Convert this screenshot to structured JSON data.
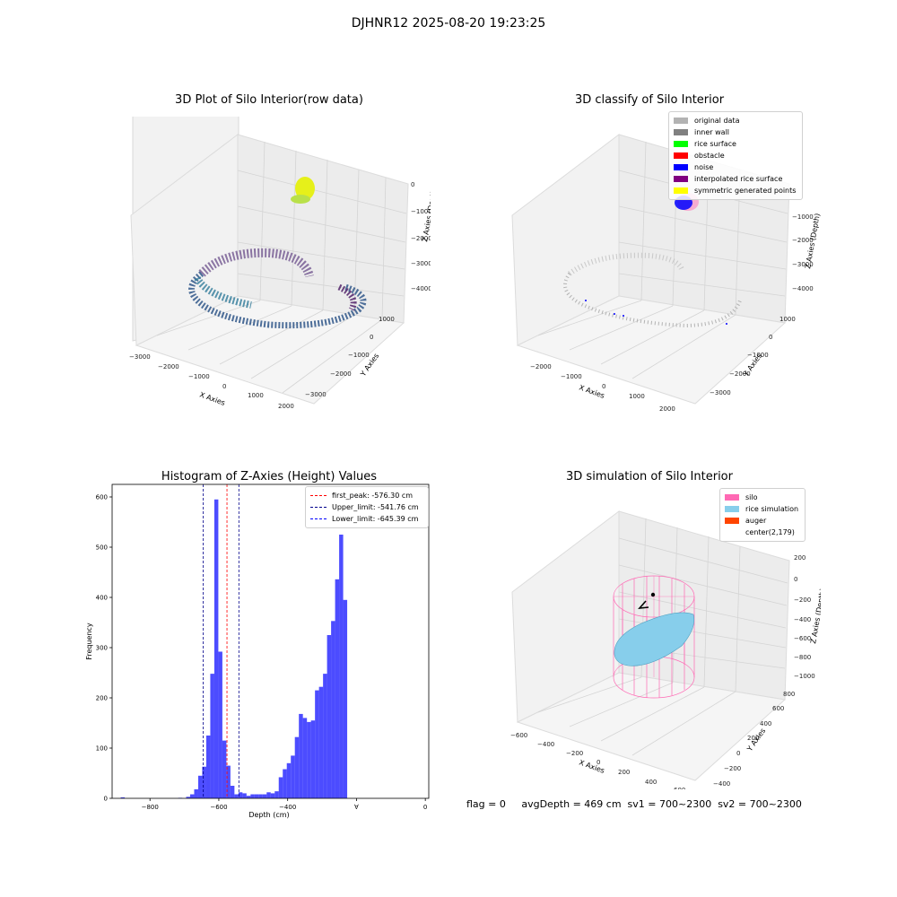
{
  "suptitle": "DJHNR12 2025-08-20 19:23:25",
  "footer_text": "flag = 0     avgDepth = 469 cm  sv1 = 700~2300  sv2 = 700~2300",
  "panel_raw": {
    "title": "3D Plot of Silo Interior(row data)",
    "xlabel": "X Axies",
    "ylabel": "Y Axies",
    "zlabel": "Z Axies (Depth)",
    "xticks": [
      "−3000",
      "−2000",
      "−1000",
      "0",
      "1000",
      "2000"
    ],
    "yticks": [
      "1000",
      "0",
      "−1000",
      "−2000",
      "−3000"
    ],
    "zticks": [
      "0",
      "−1000",
      "−2000",
      "−3000",
      "−4000"
    ]
  },
  "panel_classify": {
    "title": "3D classify of Silo Interior",
    "xlabel": "X Axies",
    "ylabel": "Y Axies",
    "zlabel": "Z Axies (Depth)",
    "xticks": [
      "−2000",
      "−1000",
      "0",
      "1000",
      "2000"
    ],
    "yticks": [
      "1000",
      "0",
      "−1000",
      "−2000",
      "−3000"
    ],
    "zticks": [
      "0",
      "−1000",
      "−2000",
      "−3000",
      "−4000"
    ],
    "legend": [
      {
        "label": "original data",
        "color": "#b3b3b3"
      },
      {
        "label": "inner wall",
        "color": "#808080"
      },
      {
        "label": "rice surface",
        "color": "#00ff00"
      },
      {
        "label": "obstacle",
        "color": "#ff0000"
      },
      {
        "label": "noise",
        "color": "#0000ff"
      },
      {
        "label": "interpolated rice surface",
        "color": "#800080"
      },
      {
        "label": "symmetric generated points",
        "color": "#ffff00"
      }
    ]
  },
  "panel_sim": {
    "title": "3D simulation of Silo Interior",
    "xlabel": "X Axies",
    "ylabel": "Y Axies",
    "zlabel": "Z Axies (Depth)",
    "xticks": [
      "−600",
      "−400",
      "−200",
      "0",
      "200",
      "400",
      "600"
    ],
    "yticks": [
      "800",
      "600",
      "400",
      "200",
      "0",
      "−200",
      "−400"
    ],
    "zticks": [
      "200",
      "0",
      "−200",
      "−400",
      "−600",
      "−800",
      "−1000"
    ],
    "legend": [
      {
        "label": "silo",
        "color": "#ff69b4"
      },
      {
        "label": "rice simulation",
        "color": "#87ceeb"
      },
      {
        "label": "auger",
        "color": "#ff4500"
      },
      {
        "label": "center(2,179)",
        "color": ""
      }
    ]
  },
  "chart_data": {
    "type": "bar",
    "title": "Histogram of Z-Axies (Height) Values",
    "xlabel": "Depth (cm)",
    "ylabel": "Frequency",
    "xlim": [
      -910,
      10
    ],
    "ylim": [
      0,
      625
    ],
    "xticks": [
      -800,
      -600,
      -400,
      -200,
      0
    ],
    "xtick_labels": [
      "−800",
      "−600",
      "−400",
      "∀",
      "0"
    ],
    "yticks": [
      0,
      100,
      200,
      300,
      400,
      500,
      600
    ],
    "bar_color": "#0000ff",
    "bin_width": 11.7,
    "bin_starts": [
      -885,
      -718,
      -695,
      -683.3,
      -671.6,
      -659.9,
      -648.2,
      -636.5,
      -624.8,
      -613.1,
      -601.4,
      -589.7,
      -578,
      -566.3,
      -554.6,
      -542.9,
      -531.2,
      -519.5,
      -507.8,
      -496.1,
      -484.4,
      -472.7,
      -461,
      -449.3,
      -437.6,
      -425.9,
      -414.2,
      -402.5,
      -390.8,
      -379.1,
      -367.4,
      -355.7,
      -344,
      -332.3,
      -320.6,
      -308.9,
      -297.2,
      -285.5,
      -273.8,
      -262.1,
      -250.4,
      -238.7,
      -227,
      -215.3,
      -203.6,
      -191.9,
      -180.2,
      -168.5,
      -156.8,
      -145.1,
      -133.4,
      -121.7,
      -110,
      -98.3,
      -86.6,
      -74.9,
      -63.2,
      -51.5,
      -39.8
    ],
    "values": [
      2,
      1,
      3,
      8,
      18,
      45,
      63,
      125,
      248,
      595,
      292,
      115,
      65,
      25,
      8,
      12,
      10,
      5,
      8,
      8,
      8,
      8,
      12,
      10,
      14,
      42,
      58,
      70,
      85,
      122,
      168,
      160,
      152,
      155,
      215,
      222,
      248,
      325,
      353,
      436,
      525,
      395,
      0,
      0,
      0,
      0,
      0,
      0,
      0,
      0,
      0,
      0,
      0,
      0,
      0,
      0,
      0,
      0,
      0
    ],
    "vlines": [
      {
        "label": "first_peak: -576.30 cm",
        "x": -576.3,
        "color": "#ff0000"
      },
      {
        "label": "Upper_limit: -541.76 cm",
        "x": -541.76,
        "color": "#00008b"
      },
      {
        "label": "Lower_limit: -645.39 cm",
        "x": -645.39,
        "color": "#00008b"
      }
    ],
    "grid": false,
    "legend_position": "top-right"
  }
}
